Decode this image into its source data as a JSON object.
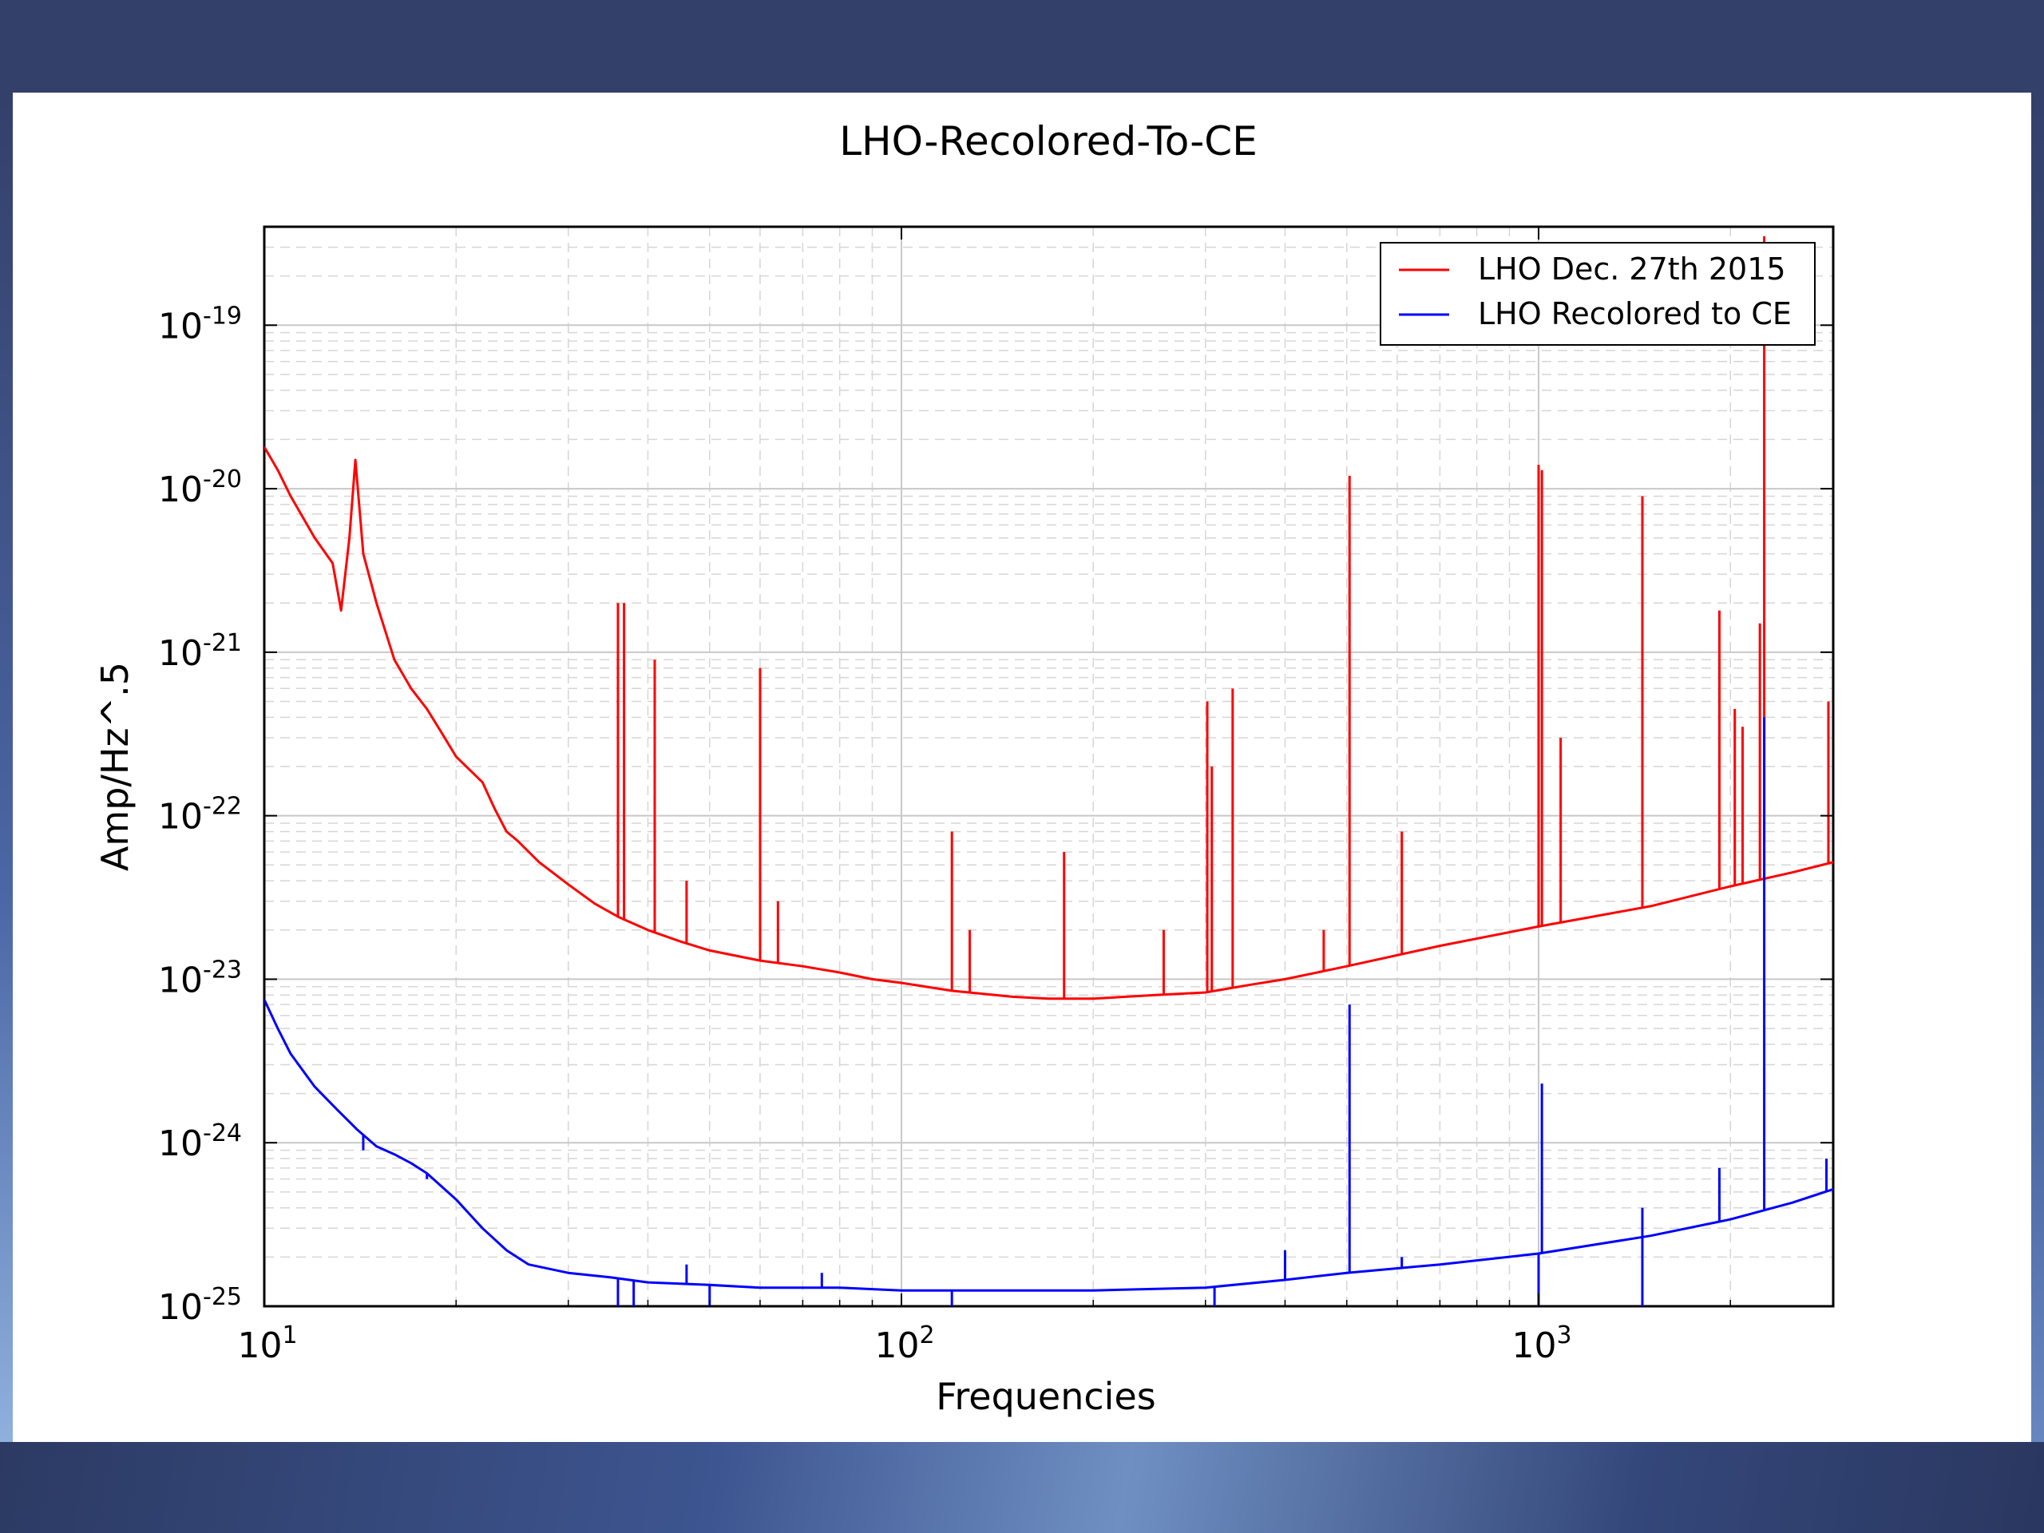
{
  "chart_data": {
    "type": "line",
    "title": "LHO-Recolored-To-CE",
    "xlabel": "Frequencies",
    "ylabel": "Amp/Hz^.5",
    "x_scale": "log",
    "y_scale": "log",
    "xlim": [
      10,
      2900
    ],
    "ylim": [
      1e-25,
      4e-19
    ],
    "grid": true,
    "legend_position": "top-right",
    "x_ticks": [
      {
        "value": 10,
        "base": "10",
        "exp": "1"
      },
      {
        "value": 100,
        "base": "10",
        "exp": "2"
      },
      {
        "value": 1000,
        "base": "10",
        "exp": "3"
      }
    ],
    "y_ticks": [
      {
        "value": 1e-25,
        "base": "10",
        "exp": "-25"
      },
      {
        "value": 1e-24,
        "base": "10",
        "exp": "-24"
      },
      {
        "value": 1e-23,
        "base": "10",
        "exp": "-23"
      },
      {
        "value": 1e-22,
        "base": "10",
        "exp": "-22"
      },
      {
        "value": 1e-21,
        "base": "10",
        "exp": "-21"
      },
      {
        "value": 1e-20,
        "base": "10",
        "exp": "-20"
      },
      {
        "value": 1e-19,
        "base": "10",
        "exp": "-19"
      }
    ],
    "series": [
      {
        "name": "LHO Dec. 27th 2015",
        "color": "#ff0000",
        "x": [
          10,
          10.5,
          11,
          12,
          12.8,
          13.2,
          13.6,
          13.9,
          14.3,
          15,
          16,
          17,
          18,
          19,
          20,
          22,
          23,
          24,
          25,
          27,
          30,
          33,
          36,
          40,
          45,
          50,
          60,
          70,
          80,
          90,
          100,
          120,
          150,
          170,
          200,
          250,
          300,
          350,
          400,
          500,
          700,
          1000,
          1500,
          2000,
          2500,
          2900
        ],
        "y": [
          1.8e-20,
          1.3e-20,
          9e-21,
          5e-21,
          3.5e-21,
          1.8e-21,
          5e-21,
          1.5e-20,
          4e-21,
          2e-21,
          9e-22,
          6e-22,
          4.5e-22,
          3.2e-22,
          2.3e-22,
          1.6e-22,
          1.1e-22,
          8e-23,
          7e-23,
          5.2e-23,
          3.8e-23,
          2.9e-23,
          2.4e-23,
          2e-23,
          1.7e-23,
          1.5e-23,
          1.3e-23,
          1.2e-23,
          1.1e-23,
          1e-23,
          9.5e-24,
          8.5e-24,
          7.8e-24,
          7.6e-24,
          7.6e-24,
          8e-24,
          8.3e-24,
          9.2e-24,
          1e-23,
          1.2e-23,
          1.6e-23,
          2.1e-23,
          2.8e-23,
          3.7e-23,
          4.5e-23,
          5.2e-23
        ],
        "peaks": [
          {
            "x": 35.9,
            "y": 2e-21
          },
          {
            "x": 36.7,
            "y": 2e-21
          },
          {
            "x": 41,
            "y": 9e-22
          },
          {
            "x": 46,
            "y": 4e-23
          },
          {
            "x": 60,
            "y": 8e-22
          },
          {
            "x": 64,
            "y": 3e-23
          },
          {
            "x": 120,
            "y": 8e-23
          },
          {
            "x": 128,
            "y": 2e-23
          },
          {
            "x": 180,
            "y": 6e-23
          },
          {
            "x": 258,
            "y": 2e-23
          },
          {
            "x": 302,
            "y": 5e-22
          },
          {
            "x": 307,
            "y": 2e-22
          },
          {
            "x": 331,
            "y": 6e-22
          },
          {
            "x": 460,
            "y": 2e-23
          },
          {
            "x": 505,
            "y": 1.2e-20
          },
          {
            "x": 610,
            "y": 8e-23
          },
          {
            "x": 1000,
            "y": 1.4e-20
          },
          {
            "x": 1012,
            "y": 1.3e-20
          },
          {
            "x": 1083,
            "y": 3e-22
          },
          {
            "x": 1455,
            "y": 9e-21
          },
          {
            "x": 1922,
            "y": 1.8e-21
          },
          {
            "x": 2032,
            "y": 4.5e-22
          },
          {
            "x": 2090,
            "y": 3.5e-22
          },
          {
            "x": 2225,
            "y": 1.5e-21
          },
          {
            "x": 2260,
            "y": 3.5e-19
          },
          {
            "x": 2850,
            "y": 5e-22
          }
        ]
      },
      {
        "name": "LHO Recolored to CE",
        "color": "#0000ff",
        "x": [
          10,
          10.5,
          11,
          12,
          13,
          14,
          15,
          16,
          17,
          18,
          20,
          22,
          24,
          26,
          30,
          35,
          40,
          50,
          60,
          80,
          100,
          150,
          200,
          300,
          400,
          500,
          700,
          1000,
          1500,
          2000,
          2500,
          2900
        ],
        "y": [
          7.5e-24,
          5e-24,
          3.5e-24,
          2.2e-24,
          1.6e-24,
          1.2e-24,
          9.5e-25,
          8.5e-25,
          7.5e-25,
          6.5e-25,
          4.5e-25,
          3e-25,
          2.2e-25,
          1.8e-25,
          1.6e-25,
          1.5e-25,
          1.4e-25,
          1.35e-25,
          1.3e-25,
          1.3e-25,
          1.25e-25,
          1.25e-25,
          1.25e-25,
          1.3e-25,
          1.45e-25,
          1.6e-25,
          1.8e-25,
          2.1e-25,
          2.7e-25,
          3.4e-25,
          4.3e-25,
          5.2e-25
        ],
        "peaks": [
          {
            "x": 14.3,
            "y": 9e-25
          },
          {
            "x": 18,
            "y": 6e-25
          },
          {
            "x": 46,
            "y": 1.8e-25
          },
          {
            "x": 75,
            "y": 1.6e-25
          },
          {
            "x": 400,
            "y": 2.2e-25
          },
          {
            "x": 505,
            "y": 7e-24
          },
          {
            "x": 610,
            "y": 2e-25
          },
          {
            "x": 1012,
            "y": 2.3e-24
          },
          {
            "x": 1455,
            "y": 4e-25
          },
          {
            "x": 1922,
            "y": 7e-25
          },
          {
            "x": 2260,
            "y": 4e-22
          },
          {
            "x": 2830,
            "y": 8e-25
          }
        ],
        "dips": [
          {
            "x": 35.9,
            "y": 1e-25
          },
          {
            "x": 38,
            "y": 1e-25
          },
          {
            "x": 50,
            "y": 1e-25
          },
          {
            "x": 120,
            "y": 1e-25
          },
          {
            "x": 310,
            "y": 1e-25
          },
          {
            "x": 1000,
            "y": 1e-25
          },
          {
            "x": 1455,
            "y": 1e-25
          }
        ]
      }
    ]
  }
}
